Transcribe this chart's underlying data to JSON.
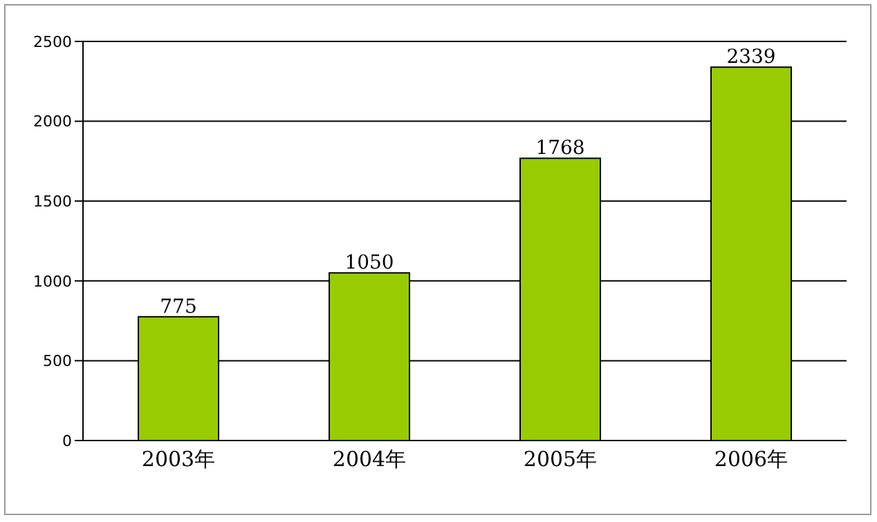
{
  "chart_data": {
    "type": "bar",
    "categories": [
      "2003年",
      "2004年",
      "2005年",
      "2006年"
    ],
    "values": [
      775,
      1050,
      1768,
      2339
    ],
    "color": "#99cc00",
    "ylim": [
      0,
      2500
    ],
    "yticks": [
      0,
      500,
      1000,
      1500,
      2000,
      2500
    ],
    "grid": "y",
    "data_labels": true
  }
}
